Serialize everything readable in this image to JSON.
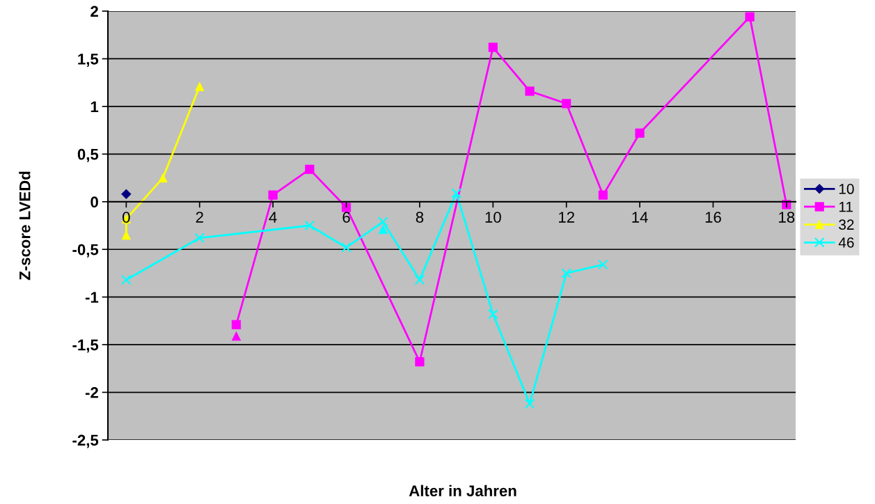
{
  "chart_data": {
    "type": "line",
    "xlabel": "Alter in Jahren",
    "ylabel": "Z-score LVEDd",
    "xlim": [
      -0.5,
      18.25
    ],
    "xticks": [
      0,
      2,
      4,
      6,
      8,
      10,
      12,
      14,
      16,
      18
    ],
    "ylim": [
      -2.5,
      2
    ],
    "yticks": [
      {
        "value": -2.5,
        "label": "-2,5"
      },
      -2,
      {
        "value": -1.5,
        "label": "-1,5"
      },
      -1,
      {
        "value": -0.5,
        "label": "-0,5"
      },
      0,
      {
        "value": 0.5,
        "label": "0,5"
      },
      1,
      {
        "value": 1.5,
        "label": "1,5"
      },
      2
    ],
    "grid": "y",
    "legend": "right",
    "series": [
      {
        "name": "10",
        "color": "#000080",
        "marker": "diamond",
        "x": [
          0
        ],
        "values": [
          0.08
        ]
      },
      {
        "name": "11",
        "color": "#ff00ff",
        "marker": "square",
        "x": [
          3,
          4,
          5,
          6,
          8,
          10,
          11,
          12,
          13,
          14,
          17,
          18
        ],
        "values": [
          -1.29,
          0.07,
          0.34,
          -0.06,
          -1.68,
          1.62,
          1.16,
          1.03,
          0.07,
          0.72,
          1.94,
          -0.03
        ]
      },
      {
        "name": "32",
        "color": "#ffff00",
        "marker": "triangle",
        "x": [
          0,
          0,
          1,
          2
        ],
        "values": [
          -0.35,
          -0.18,
          0.25,
          1.21
        ]
      },
      {
        "name": "46",
        "color": "#00ffff",
        "marker": "cross",
        "x": [
          0,
          2,
          5,
          6,
          7,
          8,
          9,
          10,
          11,
          12,
          13
        ],
        "values": [
          -0.82,
          -0.38,
          -0.25,
          -0.48,
          -0.21,
          -0.82,
          0.09,
          -1.18,
          -2.12,
          -0.75,
          -0.66
        ]
      },
      {
        "color": "#ff00ff",
        "marker": "triangle",
        "x": [
          3
        ],
        "values": [
          -1.41
        ]
      },
      {
        "color": "#00ffff",
        "marker": "triangle",
        "x": [
          7
        ],
        "values": [
          -0.29
        ]
      }
    ]
  }
}
